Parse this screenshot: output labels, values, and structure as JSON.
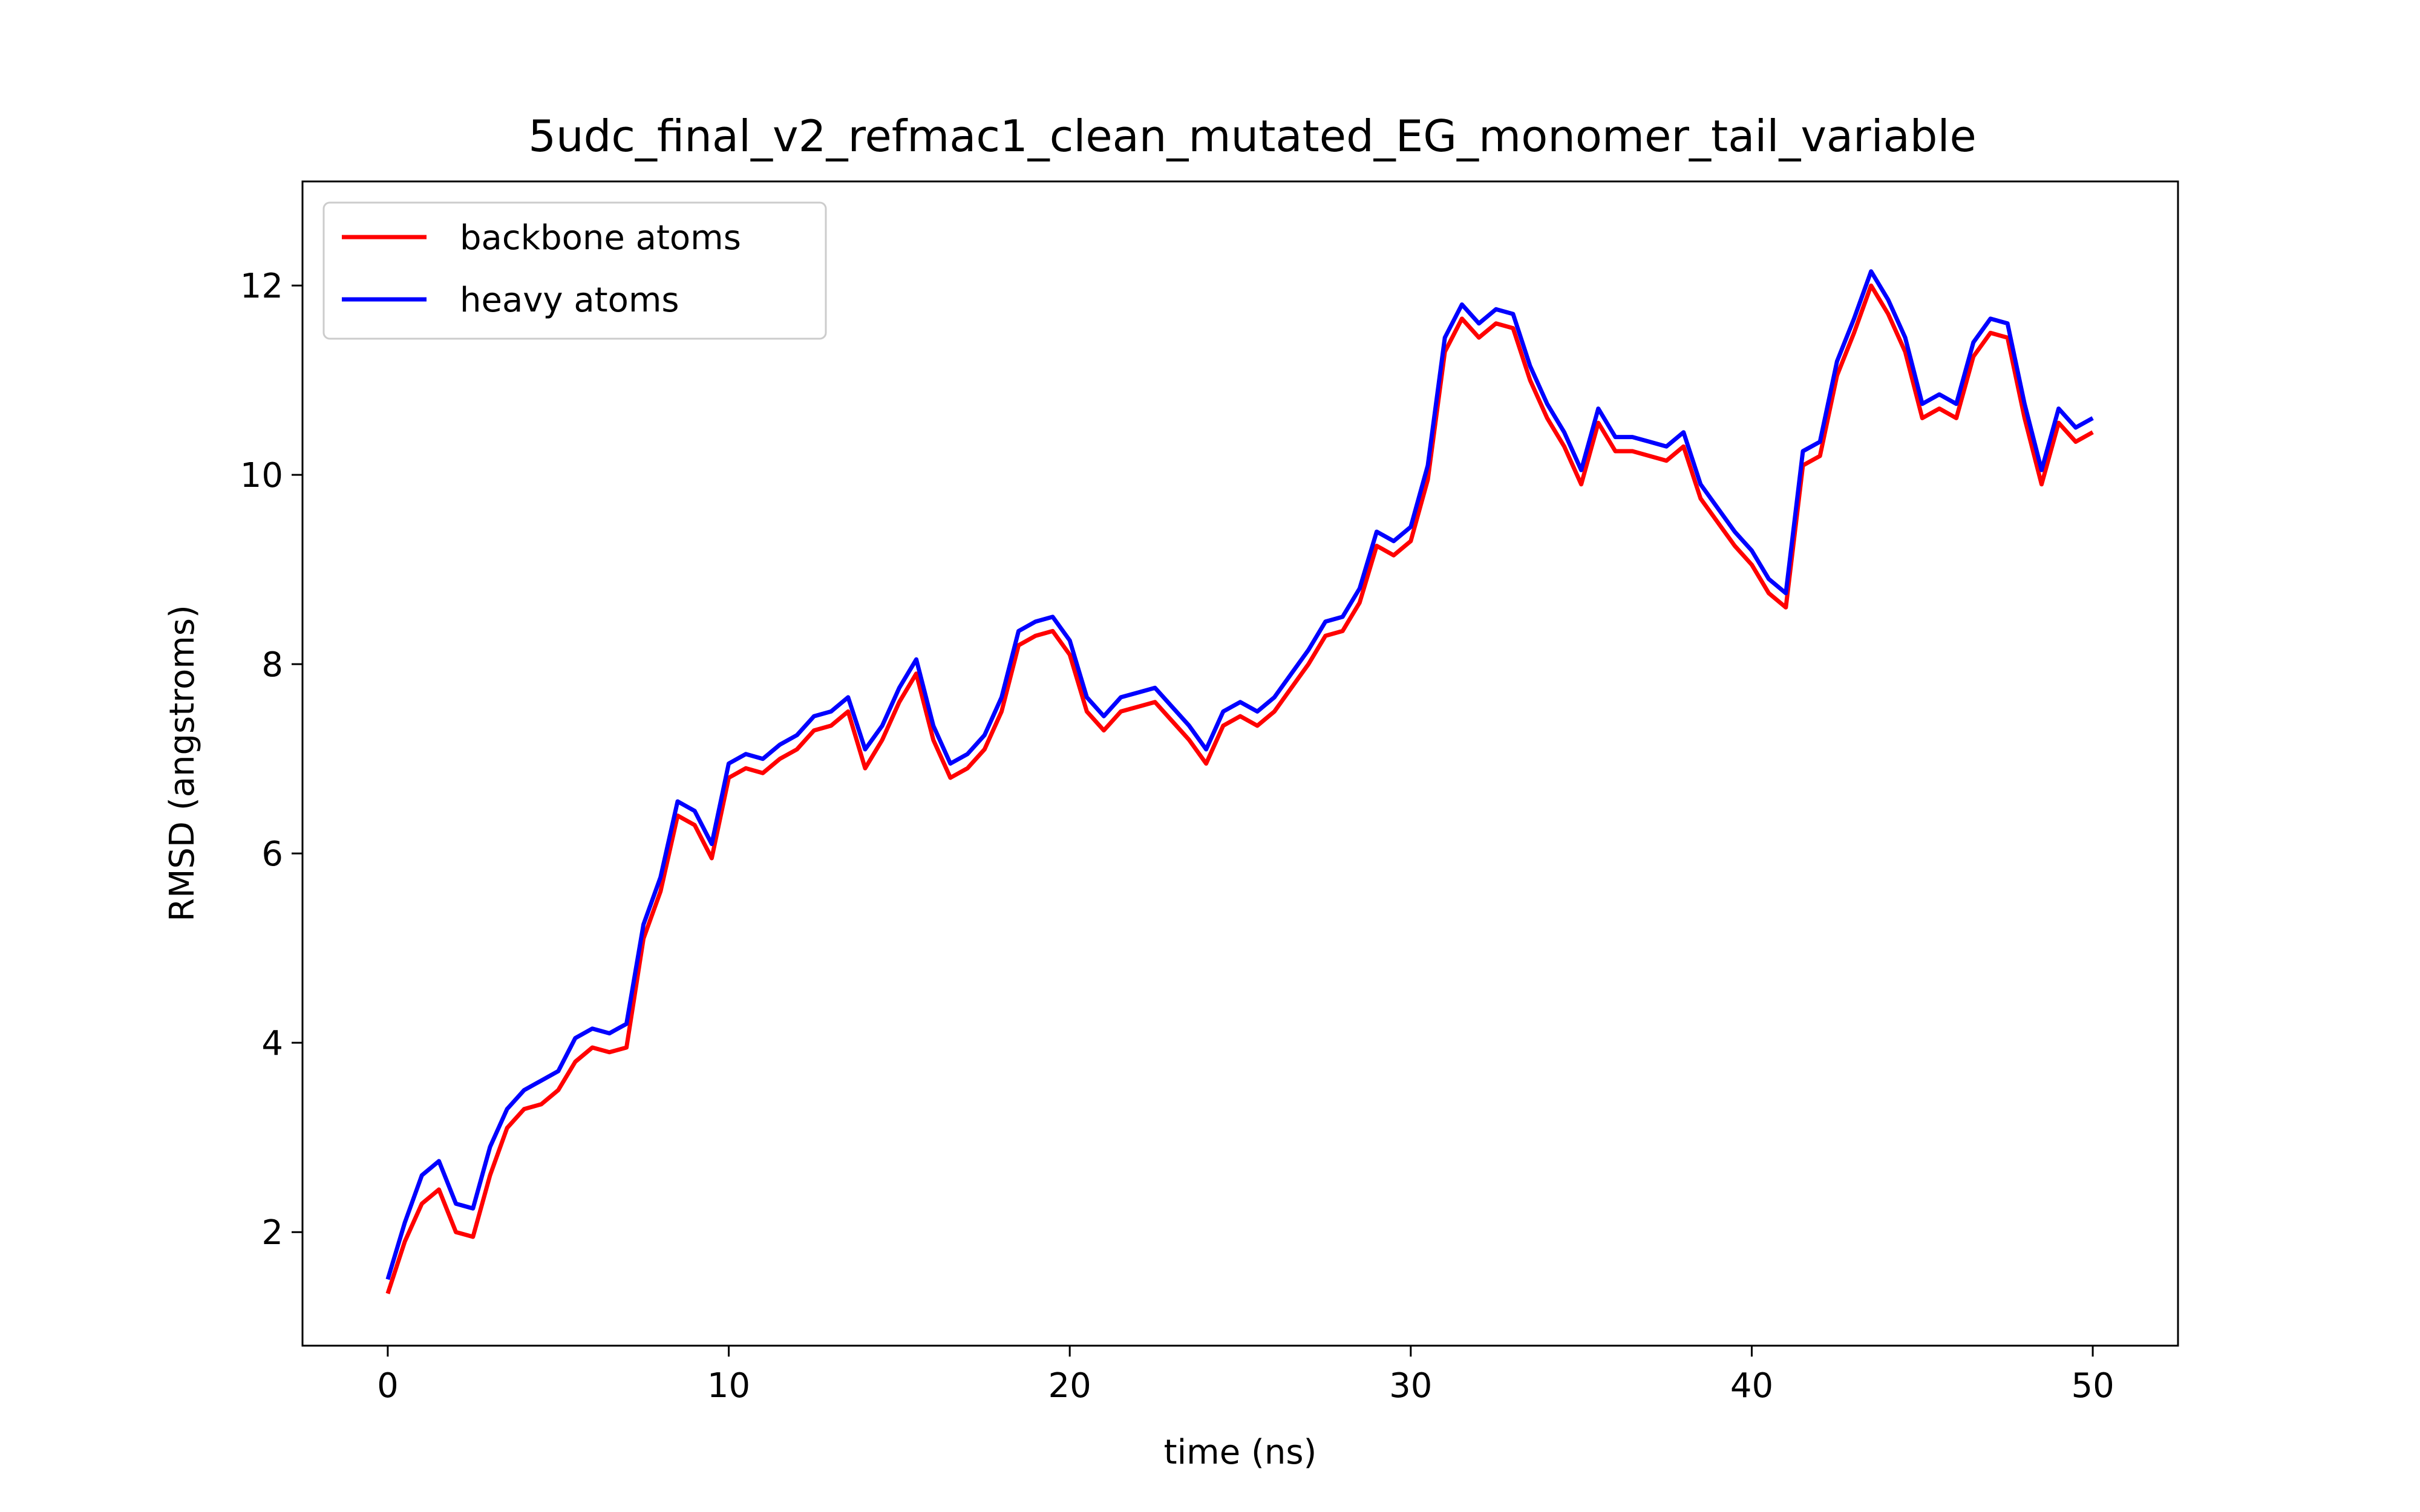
{
  "chart_data": {
    "type": "line",
    "title": "5udc_final_v2_refmac1_clean_mutated_EG_monomer_tail_variable",
    "xlabel": "time (ns)",
    "ylabel": "RMSD (angstroms)",
    "xlim": [
      -2.5,
      52.5
    ],
    "ylim": [
      0.8,
      13.1
    ],
    "xticks": [
      0,
      10,
      20,
      30,
      40,
      50
    ],
    "xtick_labels": [
      "0",
      "10",
      "20",
      "30",
      "40",
      "50"
    ],
    "yticks": [
      2,
      4,
      6,
      8,
      10,
      12
    ],
    "ytick_labels": [
      "2",
      "4",
      "6",
      "8",
      "10",
      "12"
    ],
    "grid": false,
    "legend_position": "top-left",
    "series": [
      {
        "name": "backbone atoms",
        "color": "#ff0000",
        "x": [
          0,
          0.5,
          1,
          1.5,
          2,
          2.5,
          3,
          3.5,
          4,
          4.5,
          5,
          5.5,
          6,
          6.5,
          7,
          7.5,
          8,
          8.5,
          9,
          9.5,
          10,
          10.5,
          11,
          11.5,
          12,
          12.5,
          13,
          13.5,
          14,
          14.5,
          15,
          15.5,
          16,
          16.5,
          17,
          17.5,
          18,
          18.5,
          19,
          19.5,
          20,
          20.5,
          21,
          21.5,
          22,
          22.5,
          23,
          23.5,
          24,
          24.5,
          25,
          25.5,
          26,
          26.5,
          27,
          27.5,
          28,
          28.5,
          29,
          29.5,
          30,
          30.5,
          31,
          31.5,
          32,
          32.5,
          33,
          33.5,
          34,
          34.5,
          35,
          35.5,
          36,
          36.5,
          37,
          37.5,
          38,
          38.5,
          39,
          39.5,
          40,
          40.5,
          41,
          41.5,
          42,
          42.5,
          43,
          43.5,
          44,
          44.5,
          45,
          45.5,
          46,
          46.5,
          47,
          47.5,
          48,
          48.5,
          49,
          49.5,
          50
        ],
        "values": [
          1.35,
          1.9,
          2.3,
          2.45,
          2.0,
          1.95,
          2.6,
          3.1,
          3.3,
          3.35,
          3.5,
          3.8,
          3.95,
          3.9,
          3.95,
          5.1,
          5.6,
          6.4,
          6.3,
          5.95,
          6.8,
          6.9,
          6.85,
          7.0,
          7.1,
          7.3,
          7.35,
          7.5,
          6.9,
          7.2,
          7.6,
          7.9,
          7.2,
          6.8,
          6.9,
          7.1,
          7.5,
          8.2,
          8.3,
          8.35,
          8.1,
          7.5,
          7.3,
          7.5,
          7.55,
          7.6,
          7.4,
          7.2,
          6.95,
          7.35,
          7.45,
          7.35,
          7.5,
          7.75,
          8.0,
          8.3,
          8.35,
          8.65,
          9.25,
          9.15,
          9.3,
          9.95,
          11.3,
          11.65,
          11.45,
          11.6,
          11.55,
          11.0,
          10.6,
          10.3,
          9.9,
          10.55,
          10.25,
          10.25,
          10.2,
          10.15,
          10.3,
          9.75,
          9.5,
          9.25,
          9.05,
          8.75,
          8.6,
          10.1,
          10.2,
          11.05,
          11.5,
          12.0,
          11.7,
          11.3,
          10.6,
          10.7,
          10.6,
          11.25,
          11.5,
          11.45,
          10.6,
          9.9,
          10.55,
          10.35,
          10.45
        ],
        "color_name": "red"
      },
      {
        "name": "heavy atoms",
        "color": "#0000ff",
        "x": [
          0,
          0.5,
          1,
          1.5,
          2,
          2.5,
          3,
          3.5,
          4,
          4.5,
          5,
          5.5,
          6,
          6.5,
          7,
          7.5,
          8,
          8.5,
          9,
          9.5,
          10,
          10.5,
          11,
          11.5,
          12,
          12.5,
          13,
          13.5,
          14,
          14.5,
          15,
          15.5,
          16,
          16.5,
          17,
          17.5,
          18,
          18.5,
          19,
          19.5,
          20,
          20.5,
          21,
          21.5,
          22,
          22.5,
          23,
          23.5,
          24,
          24.5,
          25,
          25.5,
          26,
          26.5,
          27,
          27.5,
          28,
          28.5,
          29,
          29.5,
          30,
          30.5,
          31,
          31.5,
          32,
          32.5,
          33,
          33.5,
          34,
          34.5,
          35,
          35.5,
          36,
          36.5,
          37,
          37.5,
          38,
          38.5,
          39,
          39.5,
          40,
          40.5,
          41,
          41.5,
          42,
          42.5,
          43,
          43.5,
          44,
          44.5,
          45,
          45.5,
          46,
          46.5,
          47,
          47.5,
          48,
          48.5,
          49,
          49.5,
          50
        ],
        "values": [
          1.5,
          2.1,
          2.6,
          2.75,
          2.3,
          2.25,
          2.9,
          3.3,
          3.5,
          3.6,
          3.7,
          4.05,
          4.15,
          4.1,
          4.2,
          5.25,
          5.75,
          6.55,
          6.45,
          6.1,
          6.95,
          7.05,
          7.0,
          7.15,
          7.25,
          7.45,
          7.5,
          7.65,
          7.1,
          7.35,
          7.75,
          8.05,
          7.35,
          6.95,
          7.05,
          7.25,
          7.65,
          8.35,
          8.45,
          8.5,
          8.25,
          7.65,
          7.45,
          7.65,
          7.7,
          7.75,
          7.55,
          7.35,
          7.1,
          7.5,
          7.6,
          7.5,
          7.65,
          7.9,
          8.15,
          8.45,
          8.5,
          8.8,
          9.4,
          9.3,
          9.45,
          10.1,
          11.45,
          11.8,
          11.6,
          11.75,
          11.7,
          11.15,
          10.75,
          10.45,
          10.05,
          10.7,
          10.4,
          10.4,
          10.35,
          10.3,
          10.45,
          9.9,
          9.65,
          9.4,
          9.2,
          8.9,
          8.75,
          10.25,
          10.35,
          11.2,
          11.65,
          12.15,
          11.85,
          11.45,
          10.75,
          10.85,
          10.75,
          11.4,
          11.65,
          11.6,
          10.75,
          10.05,
          10.7,
          10.5,
          10.6
        ],
        "color_name": "blue"
      }
    ]
  }
}
